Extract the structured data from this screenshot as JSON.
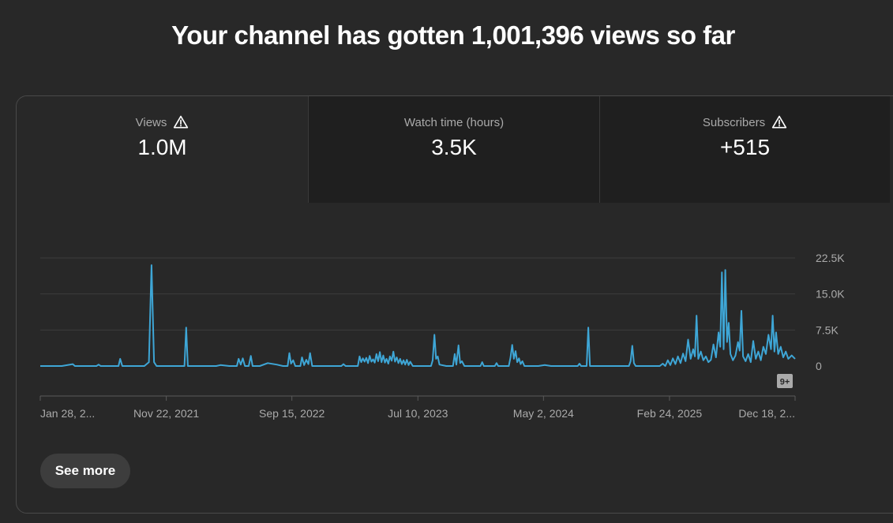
{
  "headline": "Your channel has gotten 1,001,396 views so far",
  "tabs": [
    {
      "label": "Views",
      "value": "1.0M",
      "warning": true,
      "active": true
    },
    {
      "label": "Watch time (hours)",
      "value": "3.5K",
      "warning": false,
      "active": false
    },
    {
      "label": "Subscribers",
      "value": "+515",
      "warning": true,
      "active": false
    }
  ],
  "see_more_label": "See more",
  "badge_label": "9+",
  "chart_data": {
    "type": "line",
    "series": [
      {
        "color": "#3ea6d6",
        "points": [
          [
            "2021-01-28",
            0
          ],
          [
            "2021-03-20",
            0
          ],
          [
            "2021-04-15",
            400
          ],
          [
            "2021-04-20",
            0
          ],
          [
            "2021-06-10",
            0
          ],
          [
            "2021-06-15",
            300
          ],
          [
            "2021-06-20",
            0
          ],
          [
            "2021-08-01",
            0
          ],
          [
            "2021-08-05",
            1500
          ],
          [
            "2021-08-10",
            0
          ],
          [
            "2021-10-01",
            0
          ],
          [
            "2021-10-12",
            800
          ],
          [
            "2021-10-18",
            21000
          ],
          [
            "2021-10-24",
            800
          ],
          [
            "2021-10-30",
            0
          ],
          [
            "2022-01-04",
            0
          ],
          [
            "2022-01-08",
            8000
          ],
          [
            "2022-01-12",
            0
          ],
          [
            "2022-03-20",
            0
          ],
          [
            "2022-03-30",
            200
          ],
          [
            "2022-04-20",
            0
          ],
          [
            "2022-05-08",
            0
          ],
          [
            "2022-05-12",
            1500
          ],
          [
            "2022-05-17",
            300
          ],
          [
            "2022-05-22",
            1600
          ],
          [
            "2022-05-27",
            0
          ],
          [
            "2022-06-05",
            0
          ],
          [
            "2022-06-10",
            2100
          ],
          [
            "2022-06-14",
            0
          ],
          [
            "2022-07-01",
            0
          ],
          [
            "2022-07-20",
            600
          ],
          [
            "2022-08-10",
            300
          ],
          [
            "2022-08-25",
            0
          ],
          [
            "2022-09-05",
            0
          ],
          [
            "2022-09-09",
            2700
          ],
          [
            "2022-09-13",
            500
          ],
          [
            "2022-09-18",
            1200
          ],
          [
            "2022-09-23",
            0
          ],
          [
            "2022-10-05",
            0
          ],
          [
            "2022-10-09",
            1800
          ],
          [
            "2022-10-14",
            200
          ],
          [
            "2022-10-19",
            1300
          ],
          [
            "2022-10-24",
            400
          ],
          [
            "2022-10-28",
            2700
          ],
          [
            "2022-11-02",
            0
          ],
          [
            "2022-12-01",
            0
          ],
          [
            "2023-01-10",
            0
          ],
          [
            "2023-01-15",
            400
          ],
          [
            "2023-01-20",
            0
          ],
          [
            "2023-02-18",
            0
          ],
          [
            "2023-02-22",
            2000
          ],
          [
            "2023-02-26",
            800
          ],
          [
            "2023-03-02",
            1600
          ],
          [
            "2023-03-06",
            900
          ],
          [
            "2023-03-10",
            1700
          ],
          [
            "2023-03-14",
            600
          ],
          [
            "2023-03-18",
            2100
          ],
          [
            "2023-03-22",
            900
          ],
          [
            "2023-03-26",
            1400
          ],
          [
            "2023-03-30",
            700
          ],
          [
            "2023-04-03",
            2500
          ],
          [
            "2023-04-07",
            1000
          ],
          [
            "2023-04-11",
            2900
          ],
          [
            "2023-04-15",
            800
          ],
          [
            "2023-04-19",
            2200
          ],
          [
            "2023-04-23",
            700
          ],
          [
            "2023-04-27",
            1500
          ],
          [
            "2023-05-01",
            500
          ],
          [
            "2023-05-05",
            2000
          ],
          [
            "2023-05-09",
            1100
          ],
          [
            "2023-05-13",
            3000
          ],
          [
            "2023-05-17",
            900
          ],
          [
            "2023-05-21",
            1800
          ],
          [
            "2023-05-25",
            600
          ],
          [
            "2023-05-29",
            1500
          ],
          [
            "2023-06-02",
            400
          ],
          [
            "2023-06-06",
            1200
          ],
          [
            "2023-06-10",
            300
          ],
          [
            "2023-06-14",
            1300
          ],
          [
            "2023-06-18",
            200
          ],
          [
            "2023-06-22",
            900
          ],
          [
            "2023-06-28",
            0
          ],
          [
            "2023-08-10",
            0
          ],
          [
            "2023-08-14",
            1200
          ],
          [
            "2023-08-18",
            6500
          ],
          [
            "2023-08-22",
            1500
          ],
          [
            "2023-08-26",
            2000
          ],
          [
            "2023-08-30",
            300
          ],
          [
            "2023-09-15",
            0
          ],
          [
            "2023-10-01",
            0
          ],
          [
            "2023-10-05",
            2500
          ],
          [
            "2023-10-09",
            300
          ],
          [
            "2023-10-14",
            4300
          ],
          [
            "2023-10-18",
            600
          ],
          [
            "2023-10-22",
            1000
          ],
          [
            "2023-10-28",
            0
          ],
          [
            "2023-12-05",
            0
          ],
          [
            "2023-12-09",
            800
          ],
          [
            "2023-12-13",
            0
          ],
          [
            "2024-01-08",
            0
          ],
          [
            "2024-01-12",
            600
          ],
          [
            "2024-01-16",
            0
          ],
          [
            "2024-02-10",
            0
          ],
          [
            "2024-02-14",
            1800
          ],
          [
            "2024-02-18",
            4400
          ],
          [
            "2024-02-22",
            1500
          ],
          [
            "2024-02-26",
            3100
          ],
          [
            "2024-03-01",
            800
          ],
          [
            "2024-03-05",
            1600
          ],
          [
            "2024-03-09",
            400
          ],
          [
            "2024-03-13",
            1000
          ],
          [
            "2024-03-18",
            0
          ],
          [
            "2024-04-20",
            0
          ],
          [
            "2024-05-05",
            200
          ],
          [
            "2024-05-20",
            0
          ],
          [
            "2024-07-22",
            0
          ],
          [
            "2024-07-26",
            500
          ],
          [
            "2024-07-30",
            0
          ],
          [
            "2024-08-12",
            0
          ],
          [
            "2024-08-16",
            8000
          ],
          [
            "2024-08-20",
            0
          ],
          [
            "2024-11-20",
            0
          ],
          [
            "2024-11-24",
            1000
          ],
          [
            "2024-11-28",
            4200
          ],
          [
            "2024-12-02",
            600
          ],
          [
            "2024-12-06",
            0
          ],
          [
            "2025-02-01",
            0
          ],
          [
            "2025-02-08",
            500
          ],
          [
            "2025-02-14",
            0
          ],
          [
            "2025-02-20",
            1200
          ],
          [
            "2025-02-26",
            200
          ],
          [
            "2025-03-04",
            1600
          ],
          [
            "2025-03-10",
            400
          ],
          [
            "2025-03-16",
            2000
          ],
          [
            "2025-03-22",
            600
          ],
          [
            "2025-03-28",
            2600
          ],
          [
            "2025-04-03",
            1000
          ],
          [
            "2025-04-09",
            5500
          ],
          [
            "2025-04-15",
            1500
          ],
          [
            "2025-04-21",
            3500
          ],
          [
            "2025-04-25",
            2000
          ],
          [
            "2025-04-29",
            10500
          ],
          [
            "2025-05-03",
            1500
          ],
          [
            "2025-05-09",
            3000
          ],
          [
            "2025-05-15",
            1200
          ],
          [
            "2025-05-21",
            2000
          ],
          [
            "2025-05-27",
            800
          ],
          [
            "2025-06-02",
            1300
          ],
          [
            "2025-06-08",
            4500
          ],
          [
            "2025-06-14",
            1800
          ],
          [
            "2025-06-20",
            7000
          ],
          [
            "2025-06-24",
            4000
          ],
          [
            "2025-06-28",
            19500
          ],
          [
            "2025-07-02",
            3500
          ],
          [
            "2025-07-06",
            20000
          ],
          [
            "2025-07-10",
            5000
          ],
          [
            "2025-07-14",
            9000
          ],
          [
            "2025-07-18",
            2500
          ],
          [
            "2025-07-24",
            1200
          ],
          [
            "2025-07-30",
            2200
          ],
          [
            "2025-08-05",
            5000
          ],
          [
            "2025-08-09",
            3200
          ],
          [
            "2025-08-13",
            11500
          ],
          [
            "2025-08-17",
            2000
          ],
          [
            "2025-08-23",
            1000
          ],
          [
            "2025-08-29",
            2500
          ],
          [
            "2025-09-04",
            800
          ],
          [
            "2025-09-10",
            5200
          ],
          [
            "2025-09-16",
            1500
          ],
          [
            "2025-09-22",
            3000
          ],
          [
            "2025-09-28",
            1200
          ],
          [
            "2025-10-04",
            4000
          ],
          [
            "2025-10-10",
            2500
          ],
          [
            "2025-10-16",
            6500
          ],
          [
            "2025-10-22",
            3500
          ],
          [
            "2025-10-26",
            10500
          ],
          [
            "2025-10-30",
            3000
          ],
          [
            "2025-11-03",
            7000
          ],
          [
            "2025-11-08",
            2500
          ],
          [
            "2025-11-14",
            4000
          ],
          [
            "2025-11-20",
            1800
          ],
          [
            "2025-11-26",
            3000
          ],
          [
            "2025-12-02",
            1500
          ],
          [
            "2025-12-10",
            2200
          ],
          [
            "2025-12-18",
            1500
          ]
        ]
      }
    ],
    "x_ticks": [
      {
        "label": "Jan 28, 2...",
        "date": "2021-01-28"
      },
      {
        "label": "Nov 22, 2021",
        "date": "2021-11-22"
      },
      {
        "label": "Sep 15, 2022",
        "date": "2022-09-15"
      },
      {
        "label": "Jul 10, 2023",
        "date": "2023-07-10"
      },
      {
        "label": "May 2, 2024",
        "date": "2024-05-02"
      },
      {
        "label": "Feb 24, 2025",
        "date": "2025-02-24"
      },
      {
        "label": "Dec 18, 2...",
        "date": "2025-12-18"
      }
    ],
    "y_ticks": [
      {
        "label": "22.5K",
        "value": 22500
      },
      {
        "label": "15.0K",
        "value": 15000
      },
      {
        "label": "7.5K",
        "value": 7500
      },
      {
        "label": "0",
        "value": 0
      }
    ],
    "ylim": [
      0,
      22500
    ],
    "grid": true
  }
}
